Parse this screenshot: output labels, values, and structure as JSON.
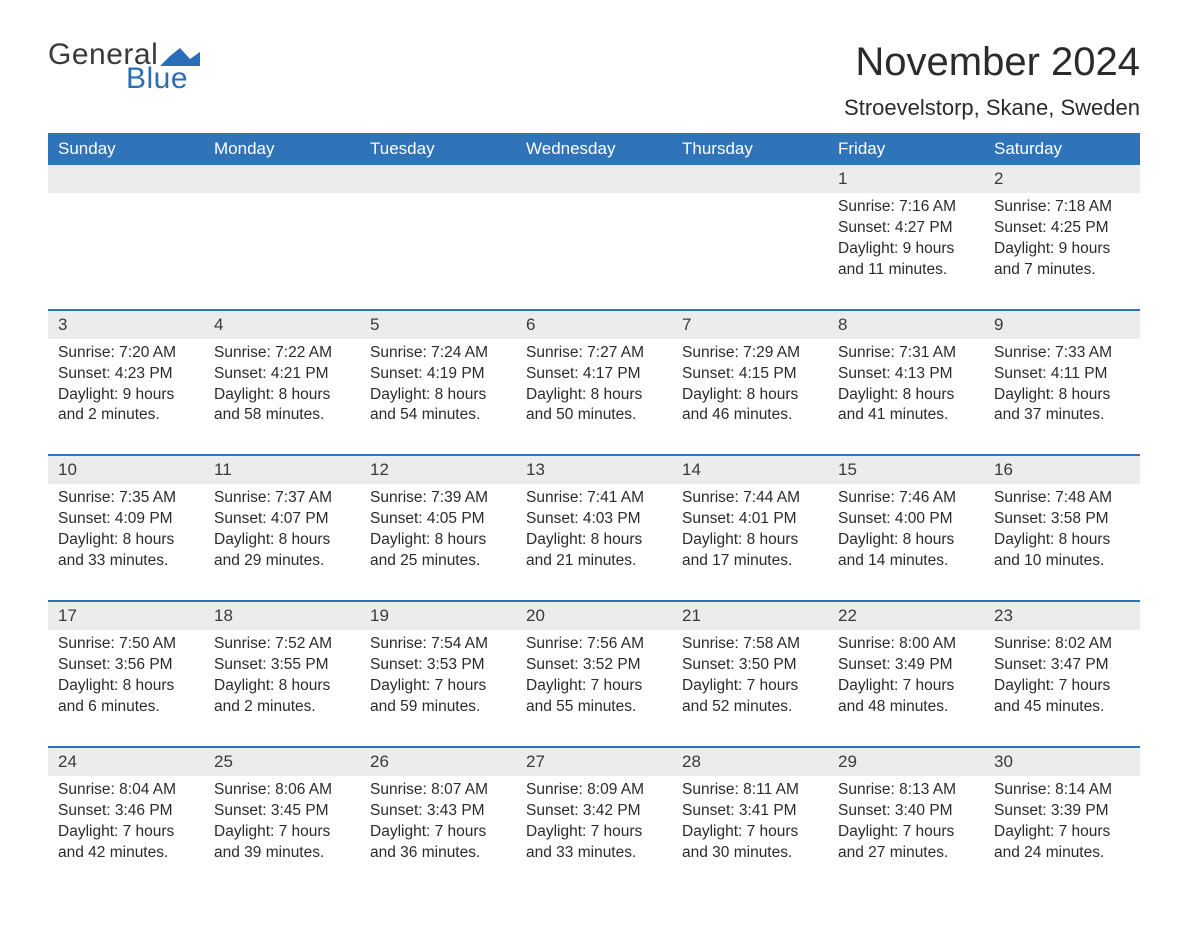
{
  "logo": {
    "text_general": "General",
    "text_blue": "Blue",
    "flag_color": "#2a6db8",
    "text_general_color": "#3a3a3a",
    "text_blue_color": "#2a6db8"
  },
  "title": "November 2024",
  "location": "Stroevelstorp, Skane, Sweden",
  "colors": {
    "header_bg": "#2f73b9",
    "header_text": "#ffffff",
    "daynum_bg": "#ececec",
    "week_border": "#2f73b9",
    "body_text": "#2b2b2b",
    "page_bg": "#ffffff"
  },
  "typography": {
    "title_fontsize": 40,
    "location_fontsize": 22,
    "header_fontsize": 17,
    "daynum_fontsize": 17,
    "cell_fontsize": 15.5
  },
  "day_headers": [
    "Sunday",
    "Monday",
    "Tuesday",
    "Wednesday",
    "Thursday",
    "Friday",
    "Saturday"
  ],
  "weeks": [
    [
      null,
      null,
      null,
      null,
      null,
      {
        "n": "1",
        "sunrise": "Sunrise: 7:16 AM",
        "sunset": "Sunset: 4:27 PM",
        "day1": "Daylight: 9 hours",
        "day2": "and 11 minutes."
      },
      {
        "n": "2",
        "sunrise": "Sunrise: 7:18 AM",
        "sunset": "Sunset: 4:25 PM",
        "day1": "Daylight: 9 hours",
        "day2": "and 7 minutes."
      }
    ],
    [
      {
        "n": "3",
        "sunrise": "Sunrise: 7:20 AM",
        "sunset": "Sunset: 4:23 PM",
        "day1": "Daylight: 9 hours",
        "day2": "and 2 minutes."
      },
      {
        "n": "4",
        "sunrise": "Sunrise: 7:22 AM",
        "sunset": "Sunset: 4:21 PM",
        "day1": "Daylight: 8 hours",
        "day2": "and 58 minutes."
      },
      {
        "n": "5",
        "sunrise": "Sunrise: 7:24 AM",
        "sunset": "Sunset: 4:19 PM",
        "day1": "Daylight: 8 hours",
        "day2": "and 54 minutes."
      },
      {
        "n": "6",
        "sunrise": "Sunrise: 7:27 AM",
        "sunset": "Sunset: 4:17 PM",
        "day1": "Daylight: 8 hours",
        "day2": "and 50 minutes."
      },
      {
        "n": "7",
        "sunrise": "Sunrise: 7:29 AM",
        "sunset": "Sunset: 4:15 PM",
        "day1": "Daylight: 8 hours",
        "day2": "and 46 minutes."
      },
      {
        "n": "8",
        "sunrise": "Sunrise: 7:31 AM",
        "sunset": "Sunset: 4:13 PM",
        "day1": "Daylight: 8 hours",
        "day2": "and 41 minutes."
      },
      {
        "n": "9",
        "sunrise": "Sunrise: 7:33 AM",
        "sunset": "Sunset: 4:11 PM",
        "day1": "Daylight: 8 hours",
        "day2": "and 37 minutes."
      }
    ],
    [
      {
        "n": "10",
        "sunrise": "Sunrise: 7:35 AM",
        "sunset": "Sunset: 4:09 PM",
        "day1": "Daylight: 8 hours",
        "day2": "and 33 minutes."
      },
      {
        "n": "11",
        "sunrise": "Sunrise: 7:37 AM",
        "sunset": "Sunset: 4:07 PM",
        "day1": "Daylight: 8 hours",
        "day2": "and 29 minutes."
      },
      {
        "n": "12",
        "sunrise": "Sunrise: 7:39 AM",
        "sunset": "Sunset: 4:05 PM",
        "day1": "Daylight: 8 hours",
        "day2": "and 25 minutes."
      },
      {
        "n": "13",
        "sunrise": "Sunrise: 7:41 AM",
        "sunset": "Sunset: 4:03 PM",
        "day1": "Daylight: 8 hours",
        "day2": "and 21 minutes."
      },
      {
        "n": "14",
        "sunrise": "Sunrise: 7:44 AM",
        "sunset": "Sunset: 4:01 PM",
        "day1": "Daylight: 8 hours",
        "day2": "and 17 minutes."
      },
      {
        "n": "15",
        "sunrise": "Sunrise: 7:46 AM",
        "sunset": "Sunset: 4:00 PM",
        "day1": "Daylight: 8 hours",
        "day2": "and 14 minutes."
      },
      {
        "n": "16",
        "sunrise": "Sunrise: 7:48 AM",
        "sunset": "Sunset: 3:58 PM",
        "day1": "Daylight: 8 hours",
        "day2": "and 10 minutes."
      }
    ],
    [
      {
        "n": "17",
        "sunrise": "Sunrise: 7:50 AM",
        "sunset": "Sunset: 3:56 PM",
        "day1": "Daylight: 8 hours",
        "day2": "and 6 minutes."
      },
      {
        "n": "18",
        "sunrise": "Sunrise: 7:52 AM",
        "sunset": "Sunset: 3:55 PM",
        "day1": "Daylight: 8 hours",
        "day2": "and 2 minutes."
      },
      {
        "n": "19",
        "sunrise": "Sunrise: 7:54 AM",
        "sunset": "Sunset: 3:53 PM",
        "day1": "Daylight: 7 hours",
        "day2": "and 59 minutes."
      },
      {
        "n": "20",
        "sunrise": "Sunrise: 7:56 AM",
        "sunset": "Sunset: 3:52 PM",
        "day1": "Daylight: 7 hours",
        "day2": "and 55 minutes."
      },
      {
        "n": "21",
        "sunrise": "Sunrise: 7:58 AM",
        "sunset": "Sunset: 3:50 PM",
        "day1": "Daylight: 7 hours",
        "day2": "and 52 minutes."
      },
      {
        "n": "22",
        "sunrise": "Sunrise: 8:00 AM",
        "sunset": "Sunset: 3:49 PM",
        "day1": "Daylight: 7 hours",
        "day2": "and 48 minutes."
      },
      {
        "n": "23",
        "sunrise": "Sunrise: 8:02 AM",
        "sunset": "Sunset: 3:47 PM",
        "day1": "Daylight: 7 hours",
        "day2": "and 45 minutes."
      }
    ],
    [
      {
        "n": "24",
        "sunrise": "Sunrise: 8:04 AM",
        "sunset": "Sunset: 3:46 PM",
        "day1": "Daylight: 7 hours",
        "day2": "and 42 minutes."
      },
      {
        "n": "25",
        "sunrise": "Sunrise: 8:06 AM",
        "sunset": "Sunset: 3:45 PM",
        "day1": "Daylight: 7 hours",
        "day2": "and 39 minutes."
      },
      {
        "n": "26",
        "sunrise": "Sunrise: 8:07 AM",
        "sunset": "Sunset: 3:43 PM",
        "day1": "Daylight: 7 hours",
        "day2": "and 36 minutes."
      },
      {
        "n": "27",
        "sunrise": "Sunrise: 8:09 AM",
        "sunset": "Sunset: 3:42 PM",
        "day1": "Daylight: 7 hours",
        "day2": "and 33 minutes."
      },
      {
        "n": "28",
        "sunrise": "Sunrise: 8:11 AM",
        "sunset": "Sunset: 3:41 PM",
        "day1": "Daylight: 7 hours",
        "day2": "and 30 minutes."
      },
      {
        "n": "29",
        "sunrise": "Sunrise: 8:13 AM",
        "sunset": "Sunset: 3:40 PM",
        "day1": "Daylight: 7 hours",
        "day2": "and 27 minutes."
      },
      {
        "n": "30",
        "sunrise": "Sunrise: 8:14 AM",
        "sunset": "Sunset: 3:39 PM",
        "day1": "Daylight: 7 hours",
        "day2": "and 24 minutes."
      }
    ]
  ]
}
